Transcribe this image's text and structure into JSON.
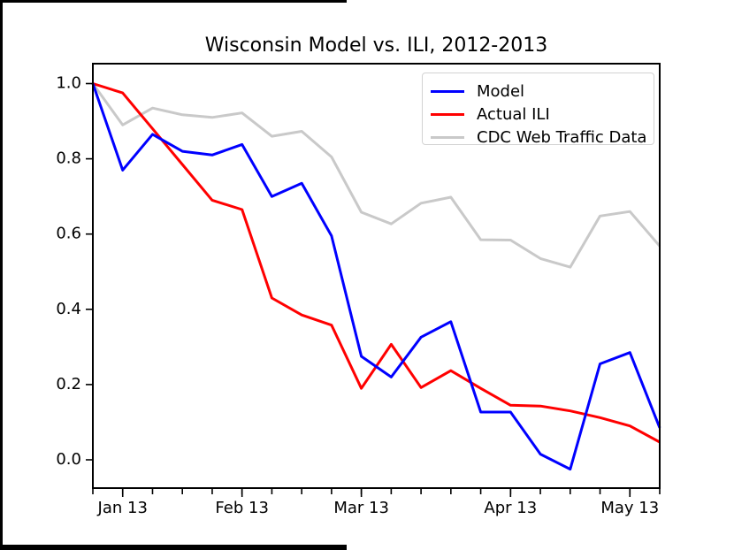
{
  "chart_data": {
    "type": "line",
    "title": "Wisconsin Model vs. ILI, 2012-2013",
    "xlabel": "",
    "ylabel": "",
    "y_ticks": [
      0.0,
      0.2,
      0.4,
      0.6,
      0.8,
      1.0
    ],
    "ylim": [
      -0.075,
      1.058
    ],
    "grid": false,
    "legend_position": "upper right",
    "x_points_are_weekly": true,
    "n_points": 20,
    "x_major_ticks": [
      {
        "index": 1,
        "label": "Jan 13"
      },
      {
        "index": 5,
        "label": "Feb 13"
      },
      {
        "index": 9,
        "label": "Mar 13"
      },
      {
        "index": 14,
        "label": "Apr 13"
      },
      {
        "index": 18,
        "label": "May 13"
      }
    ],
    "series": [
      {
        "name": "Model",
        "color": "#0000ff",
        "values": [
          1.0,
          0.77,
          0.865,
          0.82,
          0.81,
          0.838,
          0.7,
          0.735,
          0.595,
          0.275,
          0.22,
          0.326,
          0.367,
          0.127,
          0.127,
          0.015,
          -0.025,
          0.255,
          0.285,
          0.085
        ]
      },
      {
        "name": "Actual ILI",
        "color": "#ff0000",
        "values": [
          1.0,
          0.975,
          0.88,
          0.785,
          0.69,
          0.665,
          0.43,
          0.385,
          0.358,
          0.19,
          0.307,
          0.192,
          0.237,
          0.19,
          0.145,
          0.143,
          0.13,
          0.112,
          0.09,
          0.047
        ]
      },
      {
        "name": "CDC Web Traffic Data",
        "color": "#c9c9c9",
        "values": [
          1.0,
          0.89,
          0.935,
          0.917,
          0.91,
          0.922,
          0.86,
          0.873,
          0.805,
          0.658,
          0.627,
          0.682,
          0.698,
          0.585,
          0.584,
          0.535,
          0.512,
          0.648,
          0.66,
          0.568
        ]
      }
    ]
  }
}
